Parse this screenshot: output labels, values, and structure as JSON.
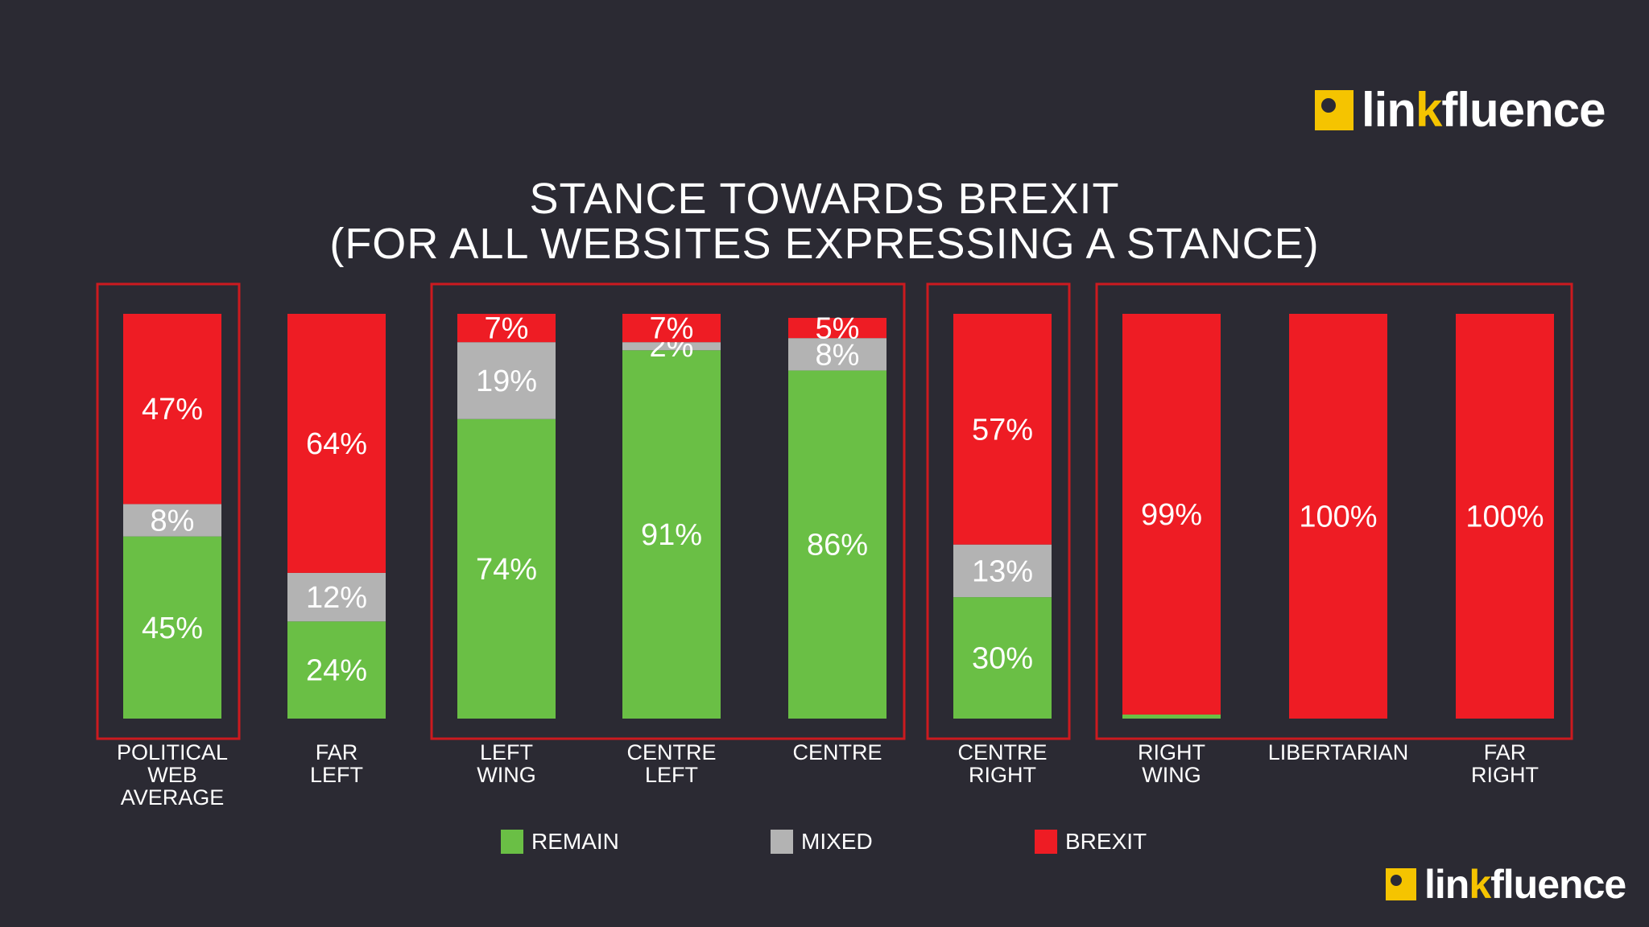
{
  "brand": {
    "name_prefix": "lin",
    "name_k": "k",
    "name_suffix": "fluence",
    "accent_color": "#f5c400"
  },
  "chart_data": {
    "type": "bar",
    "stacked": true,
    "title_line1": "STANCE TOWARDS BREXIT",
    "title_line2": "(FOR ALL WEBSITES EXPRESSING A STANCE)",
    "categories": [
      [
        "POLITICAL",
        "WEB",
        "AVERAGE"
      ],
      [
        "FAR",
        "LEFT"
      ],
      [
        "LEFT",
        "WING"
      ],
      [
        "CENTRE",
        "LEFT"
      ],
      [
        "CENTRE"
      ],
      [
        "CENTRE",
        "RIGHT"
      ],
      [
        "RIGHT",
        "WING"
      ],
      [
        "LIBERTARIAN"
      ],
      [
        "FAR",
        "RIGHT"
      ]
    ],
    "series": [
      {
        "name": "REMAIN",
        "color": "#6abf45",
        "values": [
          45,
          24,
          74,
          91,
          86,
          30,
          1,
          0,
          0
        ],
        "labels": [
          "45%",
          "24%",
          "74%",
          "91%",
          "86%",
          "30%",
          "",
          "",
          ""
        ]
      },
      {
        "name": "MIXED",
        "color": "#b3b3b3",
        "values": [
          8,
          12,
          19,
          2,
          8,
          13,
          0,
          0,
          0
        ],
        "labels": [
          "8%",
          "12%",
          "19%",
          "2%",
          "8%",
          "13%",
          "",
          "",
          ""
        ]
      },
      {
        "name": "BREXIT",
        "color": "#ee1c24",
        "values": [
          47,
          64,
          7,
          7,
          5,
          57,
          99,
          100,
          100
        ],
        "labels": [
          "47%",
          "64%",
          "7%",
          "7%",
          "5%",
          "57%",
          "99%",
          "100%",
          "100%"
        ]
      }
    ],
    "ylim": [
      0,
      100
    ],
    "groups": [
      {
        "from": 0,
        "to": 0
      },
      {
        "from": 2,
        "to": 4
      },
      {
        "from": 5,
        "to": 5
      },
      {
        "from": 6,
        "to": 8
      }
    ],
    "group_box_color": "#cc1a1f",
    "legend": [
      {
        "label": "REMAIN",
        "color": "#6abf45"
      },
      {
        "label": "MIXED",
        "color": "#b3b3b3"
      },
      {
        "label": "BREXIT",
        "color": "#ee1c24"
      }
    ]
  }
}
